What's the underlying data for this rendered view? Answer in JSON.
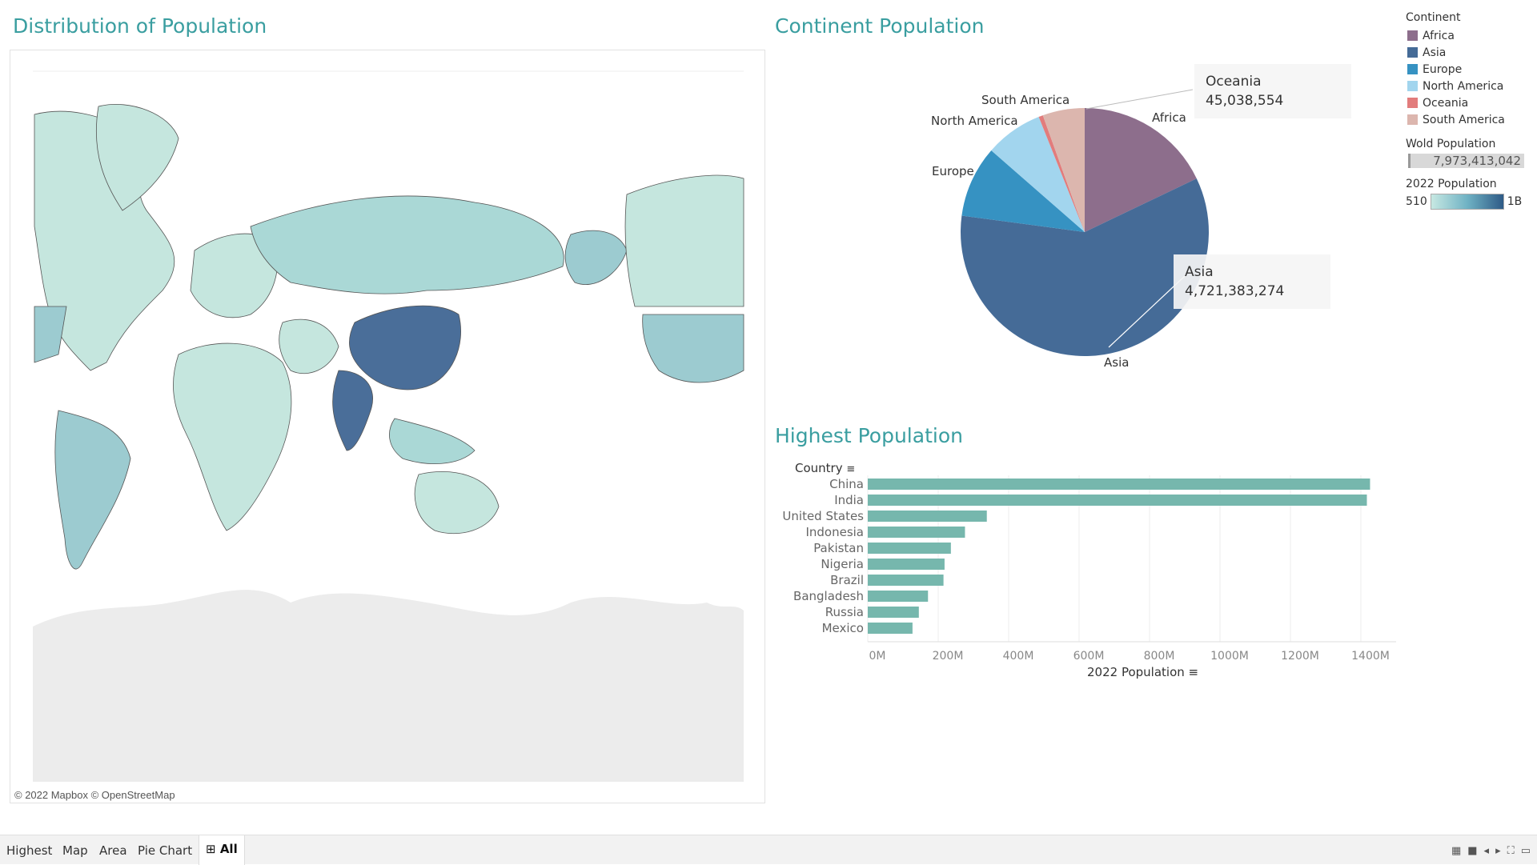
{
  "titles": {
    "map": "Distribution of Population",
    "pie": "Continent Population",
    "bar": "Highest  Population"
  },
  "map": {
    "credit": "© 2022 Mapbox © OpenStreetMap",
    "colors": {
      "low": "#c5e6de",
      "mid": "#9ccbd0",
      "high": "#4a6e99",
      "antarctica": "#ececec",
      "border": "#555555"
    }
  },
  "pie": {
    "labels": {
      "africa": "Africa",
      "asia": "Asia",
      "europe": "Europe",
      "north_america": "North America",
      "south_america": "South America"
    },
    "tooltip_oceania": {
      "name": "Oceania",
      "value": "45,038,554"
    },
    "tooltip_asia": {
      "name": "Asia",
      "value": "4,721,383,274"
    }
  },
  "legend": {
    "title": "Continent",
    "items": [
      {
        "label": "Africa",
        "color": "#8d6e8c"
      },
      {
        "label": "Asia",
        "color": "#456b97"
      },
      {
        "label": "Europe",
        "color": "#3692c2"
      },
      {
        "label": "North America",
        "color": "#a2d5ee"
      },
      {
        "label": "Oceania",
        "color": "#e27c7c"
      },
      {
        "label": "South America",
        "color": "#dcb6ae"
      }
    ],
    "world_title": "Wold Population",
    "world_value": "7,973,413,042",
    "grad_title": "2022 Population",
    "grad_min": "510",
    "grad_max": "1B"
  },
  "chart_data": [
    {
      "type": "pie",
      "title": "Continent Population",
      "slices": [
        {
          "name": "Africa",
          "value": 1426730932,
          "color": "#8d6e8c"
        },
        {
          "name": "Asia",
          "value": 4721383274,
          "color": "#456b97"
        },
        {
          "name": "Europe",
          "value": 743147538,
          "color": "#3692c2"
        },
        {
          "name": "North America",
          "value": 600296136,
          "color": "#a2d5ee"
        },
        {
          "name": "Oceania",
          "value": 45038554,
          "color": "#e27c7c"
        },
        {
          "name": "South America",
          "value": 436816608,
          "color": "#dcb6ae"
        }
      ]
    },
    {
      "type": "bar",
      "title": "Highest  Population",
      "ylabel": "Country",
      "xlabel": "2022 Population",
      "categories": [
        "China",
        "India",
        "United States",
        "Indonesia",
        "Pakistan",
        "Nigeria",
        "Brazil",
        "Bangladesh",
        "Russia",
        "Mexico"
      ],
      "values": [
        1426000000,
        1417000000,
        338000000,
        276000000,
        236000000,
        218000000,
        215000000,
        171000000,
        145000000,
        127000000
      ],
      "xlim": [
        0,
        1500000000
      ],
      "ticks": [
        {
          "value": 0,
          "label": "0M"
        },
        {
          "value": 200000000,
          "label": "200M"
        },
        {
          "value": 400000000,
          "label": "400M"
        },
        {
          "value": 600000000,
          "label": "600M"
        },
        {
          "value": 800000000,
          "label": "800M"
        },
        {
          "value": 1000000000,
          "label": "1000M"
        },
        {
          "value": 1200000000,
          "label": "1200M"
        },
        {
          "value": 1400000000,
          "label": "1400M"
        }
      ],
      "color": "#76b7ad",
      "grid": true
    }
  ],
  "tabs": [
    {
      "label": "Highest",
      "active": false
    },
    {
      "label": "Map",
      "active": false
    },
    {
      "label": "Area",
      "active": false
    },
    {
      "label": "Pie Chart",
      "active": false
    },
    {
      "label": "All",
      "active": true
    }
  ]
}
